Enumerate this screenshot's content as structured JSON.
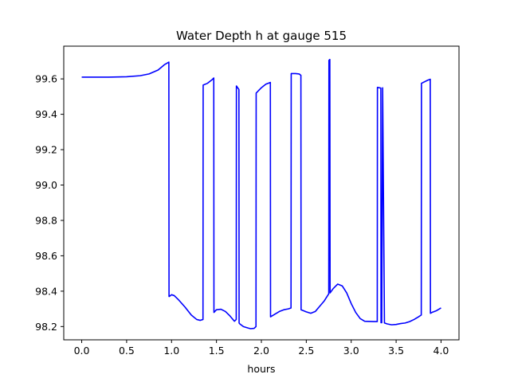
{
  "chart_data": {
    "type": "line",
    "title": "Water Depth h at gauge 515",
    "xlabel": "hours",
    "ylabel": "",
    "xlim": [
      -0.2,
      4.2
    ],
    "ylim": [
      98.125,
      99.785
    ],
    "grid": false,
    "xticks": [
      0.0,
      0.5,
      1.0,
      1.5,
      2.0,
      2.5,
      3.0,
      3.5,
      4.0
    ],
    "xtick_labels": [
      "0.0",
      "0.5",
      "1.0",
      "1.5",
      "2.0",
      "2.5",
      "3.0",
      "3.5",
      "4.0"
    ],
    "yticks": [
      98.2,
      98.4,
      98.6,
      98.8,
      99.0,
      99.2,
      99.4,
      99.6
    ],
    "ytick_labels": [
      "98.2",
      "98.4",
      "98.6",
      "98.8",
      "99.0",
      "99.2",
      "99.4",
      "99.6"
    ],
    "line_color": "#0000ff",
    "series": [
      {
        "x": [
          0.0,
          0.3,
          0.5,
          0.65,
          0.75,
          0.85,
          0.92,
          0.97,
          0.972,
          0.975,
          1.0,
          1.03,
          1.08,
          1.15,
          1.22,
          1.28,
          1.32,
          1.35,
          1.352,
          1.4,
          1.45,
          1.47,
          1.472,
          1.5,
          1.55,
          1.6,
          1.65,
          1.7,
          1.72,
          1.722,
          1.75,
          1.752,
          1.76,
          1.8,
          1.85,
          1.88,
          1.92,
          1.94,
          1.942,
          2.0,
          2.05,
          2.1,
          2.102,
          2.15,
          2.2,
          2.25,
          2.3,
          2.33,
          2.332,
          2.38,
          2.42,
          2.44,
          2.442,
          2.5,
          2.55,
          2.6,
          2.65,
          2.7,
          2.75,
          2.752,
          2.762,
          2.765,
          2.8,
          2.85,
          2.9,
          2.95,
          3.0,
          3.05,
          3.1,
          3.15,
          3.25,
          3.29,
          3.292,
          3.33,
          3.332,
          3.34,
          3.35,
          3.37,
          3.372,
          3.4,
          3.45,
          3.5,
          3.55,
          3.6,
          3.65,
          3.7,
          3.75,
          3.78,
          3.782,
          3.85,
          3.88,
          3.882,
          3.9,
          3.95,
          4.0
        ],
        "y": [
          99.61,
          99.61,
          99.612,
          99.618,
          99.628,
          99.65,
          99.68,
          99.695,
          98.37,
          98.37,
          98.38,
          98.375,
          98.35,
          98.31,
          98.265,
          98.24,
          98.235,
          98.24,
          99.565,
          99.575,
          99.595,
          99.605,
          98.28,
          98.295,
          98.298,
          98.285,
          98.26,
          98.23,
          98.24,
          99.56,
          99.54,
          98.22,
          98.215,
          98.2,
          98.192,
          98.188,
          98.19,
          98.2,
          99.52,
          99.55,
          99.57,
          99.58,
          98.255,
          98.27,
          98.285,
          98.295,
          98.3,
          98.305,
          99.63,
          99.63,
          99.628,
          99.62,
          98.295,
          98.283,
          98.275,
          98.285,
          98.315,
          98.345,
          98.385,
          99.705,
          99.71,
          98.39,
          98.415,
          98.44,
          98.43,
          98.39,
          98.33,
          98.28,
          98.245,
          98.23,
          98.228,
          98.228,
          99.552,
          99.548,
          98.222,
          98.222,
          99.55,
          98.22,
          98.22,
          98.215,
          98.21,
          98.212,
          98.217,
          98.22,
          98.228,
          98.24,
          98.255,
          98.265,
          99.575,
          99.592,
          99.598,
          98.275,
          98.28,
          98.29,
          98.305
        ]
      }
    ]
  }
}
